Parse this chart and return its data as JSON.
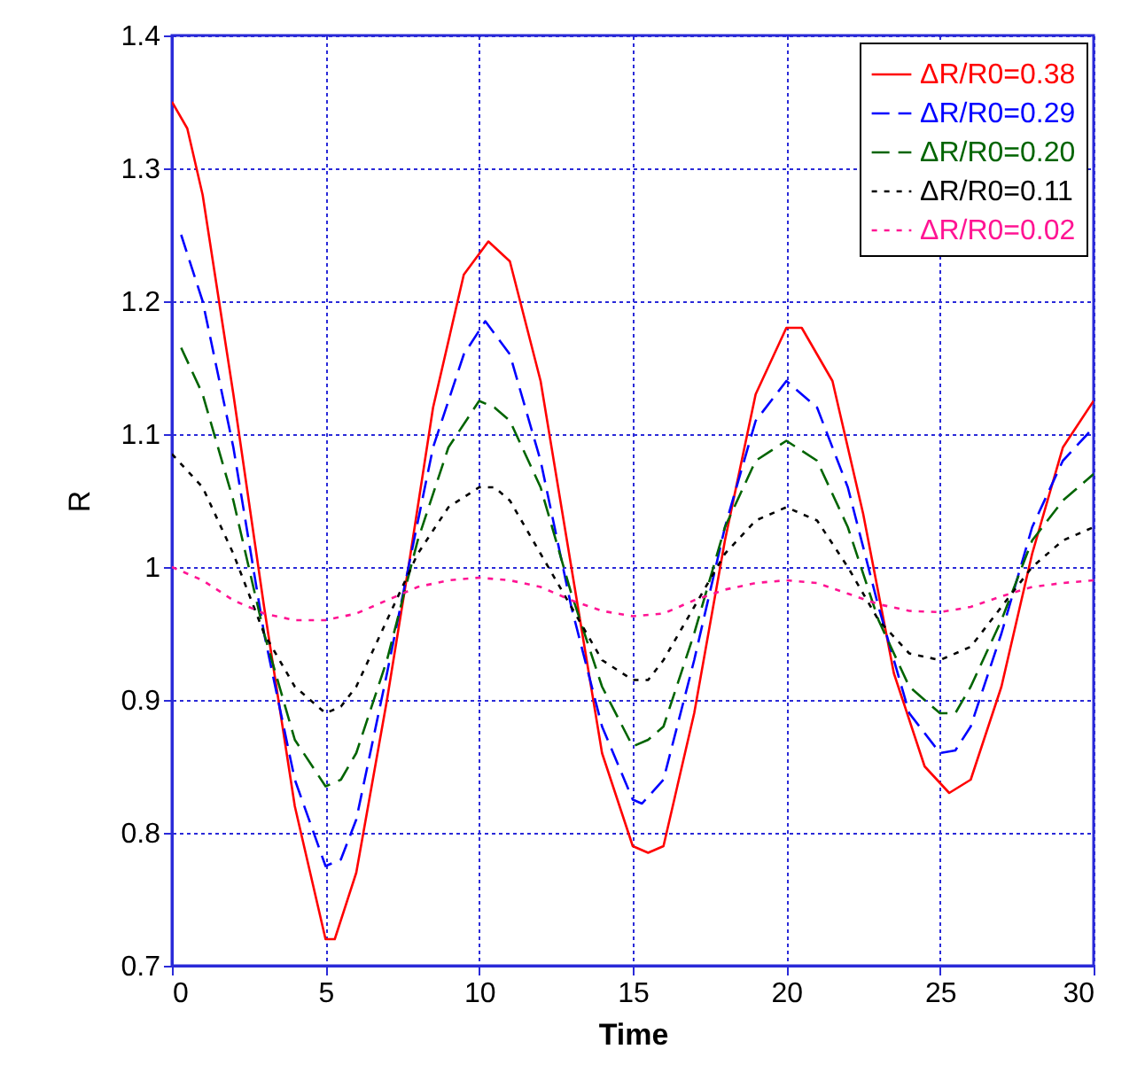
{
  "chart_data": {
    "type": "line",
    "xlabel": "Time",
    "ylabel": "R",
    "xlim": [
      0,
      30
    ],
    "ylim": [
      0.7,
      1.4
    ],
    "xticks": [
      0,
      5,
      10,
      15,
      20,
      25,
      30
    ],
    "yticks": [
      0.7,
      0.8,
      0.9,
      1,
      1.1,
      1.2,
      1.3,
      1.4
    ],
    "grid": true,
    "legend": "top right",
    "series": [
      {
        "name": "ΔR/R0=0.38",
        "color": "#ff0000",
        "line_style": "solid",
        "x": [
          0,
          0.5,
          1,
          2,
          3,
          4,
          5,
          5.3,
          6,
          7,
          7.7,
          8.5,
          9.5,
          10.3,
          11,
          12,
          13,
          14,
          15,
          15.5,
          16,
          17,
          18,
          19,
          20,
          20.5,
          21.5,
          22.5,
          23.5,
          24.5,
          25.3,
          26,
          27,
          28,
          29,
          30
        ],
        "values": [
          1.35,
          1.33,
          1.28,
          1.13,
          0.97,
          0.82,
          0.72,
          0.72,
          0.77,
          0.9,
          1.0,
          1.12,
          1.22,
          1.245,
          1.23,
          1.14,
          1.0,
          0.86,
          0.79,
          0.785,
          0.79,
          0.89,
          1.02,
          1.13,
          1.18,
          1.18,
          1.14,
          1.04,
          0.92,
          0.85,
          0.83,
          0.84,
          0.91,
          1.01,
          1.09,
          1.125
        ]
      },
      {
        "name": "ΔR/R0=0.29",
        "color": "#0000ff",
        "line_style": "dashed",
        "x": [
          0.3,
          1,
          2,
          3,
          4,
          5,
          5.5,
          6,
          7,
          7.7,
          8.5,
          9.5,
          10.2,
          11,
          12,
          13,
          14,
          15,
          15.3,
          16,
          17,
          18,
          19,
          20,
          21,
          22,
          23,
          24,
          25,
          25.5,
          26,
          27,
          28,
          29,
          30
        ],
        "values": [
          1.25,
          1.2,
          1.09,
          0.95,
          0.84,
          0.775,
          0.78,
          0.81,
          0.92,
          1.0,
          1.09,
          1.16,
          1.185,
          1.16,
          1.08,
          0.97,
          0.88,
          0.825,
          0.822,
          0.84,
          0.93,
          1.03,
          1.11,
          1.14,
          1.12,
          1.06,
          0.97,
          0.89,
          0.86,
          0.862,
          0.88,
          0.95,
          1.03,
          1.08,
          1.105
        ]
      },
      {
        "name": "ΔR/R0=0.20",
        "color": "#006400",
        "line_style": "dashed",
        "x": [
          0.3,
          1,
          2,
          3,
          4,
          5,
          5.5,
          6,
          7,
          8,
          9,
          10,
          10.5,
          11,
          12,
          13,
          14,
          15,
          15.5,
          16,
          17,
          18,
          19,
          20,
          21,
          22,
          23,
          24,
          25,
          25.5,
          26,
          27,
          28,
          29,
          30
        ],
        "values": [
          1.165,
          1.13,
          1.05,
          0.95,
          0.87,
          0.835,
          0.84,
          0.86,
          0.93,
          1.02,
          1.09,
          1.125,
          1.12,
          1.11,
          1.06,
          0.98,
          0.91,
          0.865,
          0.87,
          0.88,
          0.95,
          1.03,
          1.08,
          1.095,
          1.08,
          1.03,
          0.96,
          0.91,
          0.89,
          0.89,
          0.91,
          0.96,
          1.02,
          1.05,
          1.07
        ]
      },
      {
        "name": "ΔR/R0=0.11",
        "color": "#000000",
        "line_style": "dotted",
        "x": [
          0,
          1,
          2,
          3,
          4,
          5,
          5.5,
          6,
          7,
          8,
          9,
          10,
          10.5,
          11,
          12,
          13,
          14,
          15,
          15.5,
          16,
          17,
          18,
          19,
          20,
          21,
          22,
          23,
          24,
          25,
          26,
          27,
          28,
          29,
          30
        ],
        "values": [
          1.085,
          1.06,
          1.01,
          0.95,
          0.91,
          0.89,
          0.895,
          0.91,
          0.96,
          1.01,
          1.045,
          1.06,
          1.06,
          1.05,
          1.01,
          0.97,
          0.93,
          0.915,
          0.915,
          0.93,
          0.97,
          1.01,
          1.035,
          1.045,
          1.035,
          1.0,
          0.96,
          0.935,
          0.93,
          0.94,
          0.97,
          1.0,
          1.02,
          1.03
        ]
      },
      {
        "name": "ΔR/R0=0.02",
        "color": "#ff1493",
        "line_style": "dotted",
        "x": [
          0,
          1,
          2,
          3,
          4,
          5,
          6,
          7,
          8,
          9,
          10,
          11,
          12,
          13,
          14,
          15,
          16,
          17,
          18,
          19,
          20,
          21,
          22,
          23,
          24,
          25,
          26,
          27,
          28,
          29,
          30
        ],
        "values": [
          1.0,
          0.99,
          0.975,
          0.965,
          0.96,
          0.96,
          0.965,
          0.975,
          0.985,
          0.99,
          0.992,
          0.99,
          0.985,
          0.975,
          0.967,
          0.963,
          0.965,
          0.975,
          0.983,
          0.988,
          0.99,
          0.988,
          0.98,
          0.972,
          0.967,
          0.966,
          0.97,
          0.978,
          0.985,
          0.988,
          0.99
        ]
      }
    ]
  }
}
